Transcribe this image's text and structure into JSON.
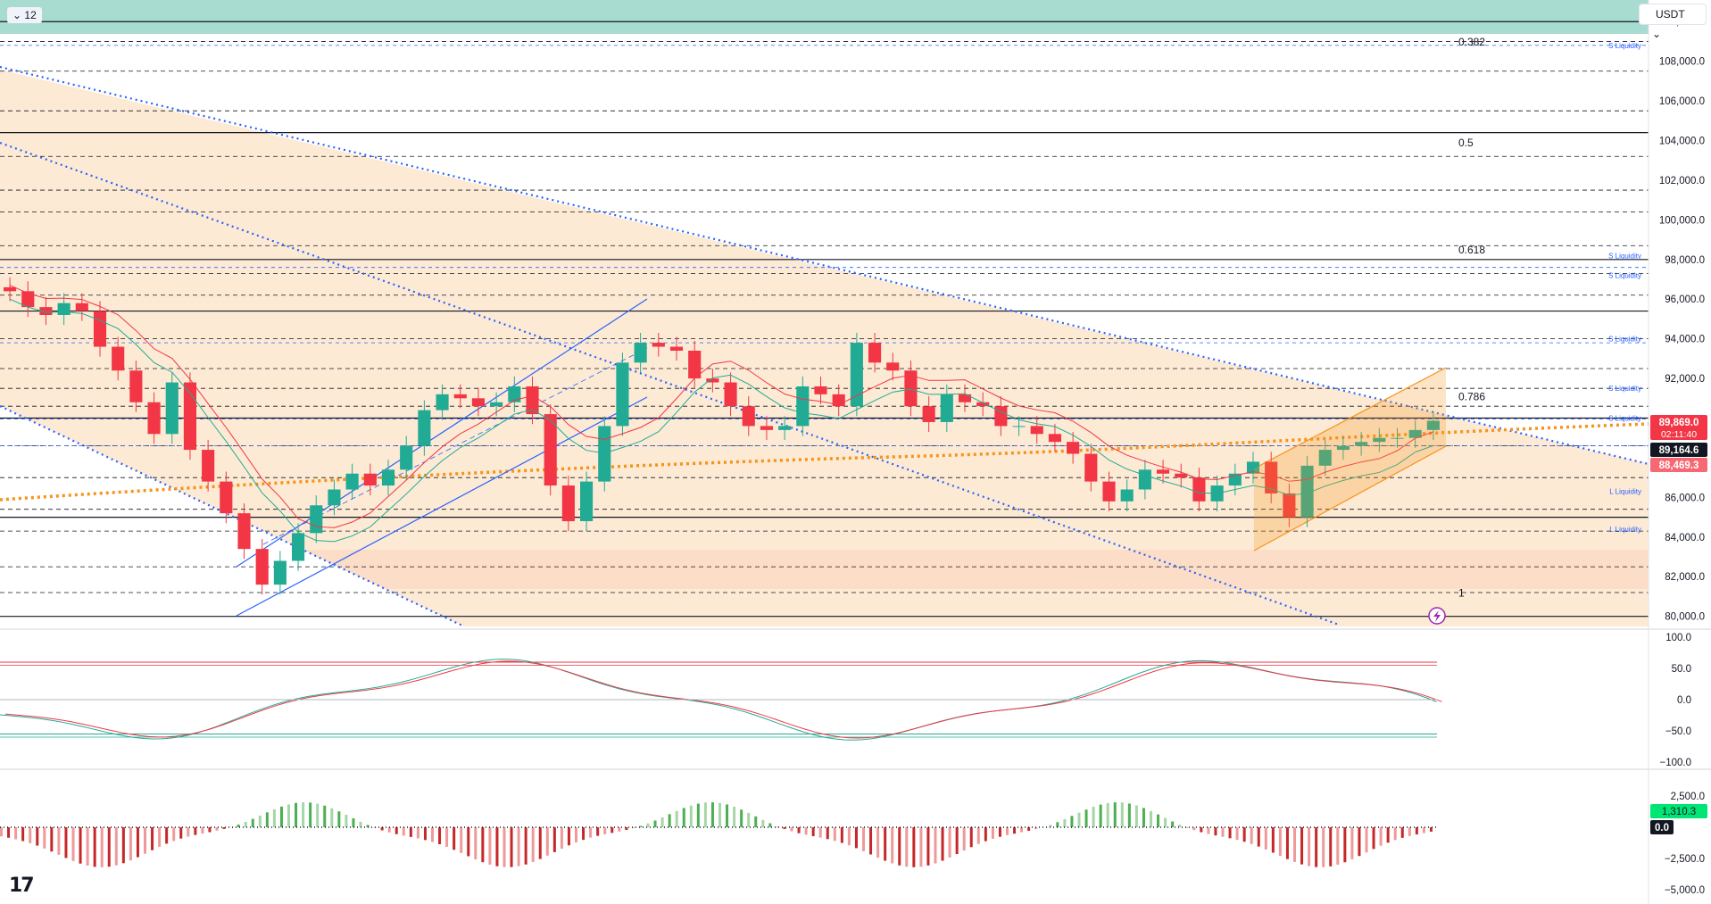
{
  "toolbar": {
    "interval": "12",
    "currency": "USDT"
  },
  "colors": {
    "up": "#22ab94",
    "down": "#f23645",
    "trend": "#2962ff",
    "poc": "#f7931a",
    "zone_top": "#a8dcd1",
    "zone_red": "#f7a8a8",
    "zone_orange": "#fde6cc"
  },
  "price_axis": {
    "labels": [
      "110,000.0",
      "108,000.0",
      "106,000.0",
      "104,000.0",
      "102,000.0",
      "100,000.0",
      "98,000.0",
      "96,000.0",
      "94,000.0",
      "92,000.0",
      "86,000.0",
      "84,000.0",
      "82,000.0",
      "80,000.0"
    ]
  },
  "badges": {
    "last": "89,869.0",
    "countdown": "02:11:40",
    "price2": "89,164.6",
    "price3": "88,469.3"
  },
  "fib": {
    "f0382": "0.382",
    "f05": "0.5",
    "f0618": "0.618",
    "f0786": "0.786",
    "f1": "1"
  },
  "liquidity": {
    "s": "S Liquidity",
    "l": "L Liquidity"
  },
  "osc_axis": {
    "labels": [
      "100.0",
      "50.0",
      "0.0",
      "−50.0",
      "−100.0"
    ]
  },
  "macd_axis": {
    "labels": [
      "2,500.0",
      "−2,500.0",
      "−5,000.0"
    ],
    "value": "1,310.3",
    "zero": "0.0"
  },
  "logo": "17",
  "chart_data": {
    "type": "candlestick",
    "currency": "USDT",
    "interval": "12",
    "y_axis": {
      "ylim": [
        79400,
        111000
      ],
      "ticks": [
        80000,
        82000,
        84000,
        86000,
        92000,
        94000,
        96000,
        98000,
        100000,
        102000,
        104000,
        106000,
        108000,
        110000
      ]
    },
    "last_price": 89869.0,
    "candles_approx_close": [
      96400,
      95600,
      95200,
      95800,
      95400,
      93600,
      92400,
      90800,
      89200,
      91800,
      88400,
      86800,
      85200,
      83400,
      81600,
      82800,
      84200,
      85600,
      86400,
      87200,
      86600,
      87400,
      88600,
      90400,
      91200,
      91000,
      90600,
      90800,
      91600,
      90200,
      86600,
      84800,
      86800,
      89600,
      92800,
      93800,
      93600,
      93400,
      92000,
      91800,
      90600,
      89600,
      89400,
      89600,
      91600,
      91200,
      90600,
      93800,
      92800,
      92400,
      90600,
      89800,
      91200,
      90800,
      90600,
      89600,
      89600,
      89200,
      88800,
      88200,
      86800,
      85800,
      86400,
      87400,
      87200,
      87000,
      85800,
      86600,
      87200,
      87800,
      86200,
      85000,
      87600,
      88400,
      88600,
      88800,
      89000,
      89000,
      89400,
      89869
    ]
  },
  "oscillator": {
    "range": [
      -100,
      100
    ],
    "levels": [
      50,
      0,
      -50
    ]
  },
  "macd": {
    "range": [
      -5000,
      2500
    ],
    "last_value": 1310.3
  }
}
